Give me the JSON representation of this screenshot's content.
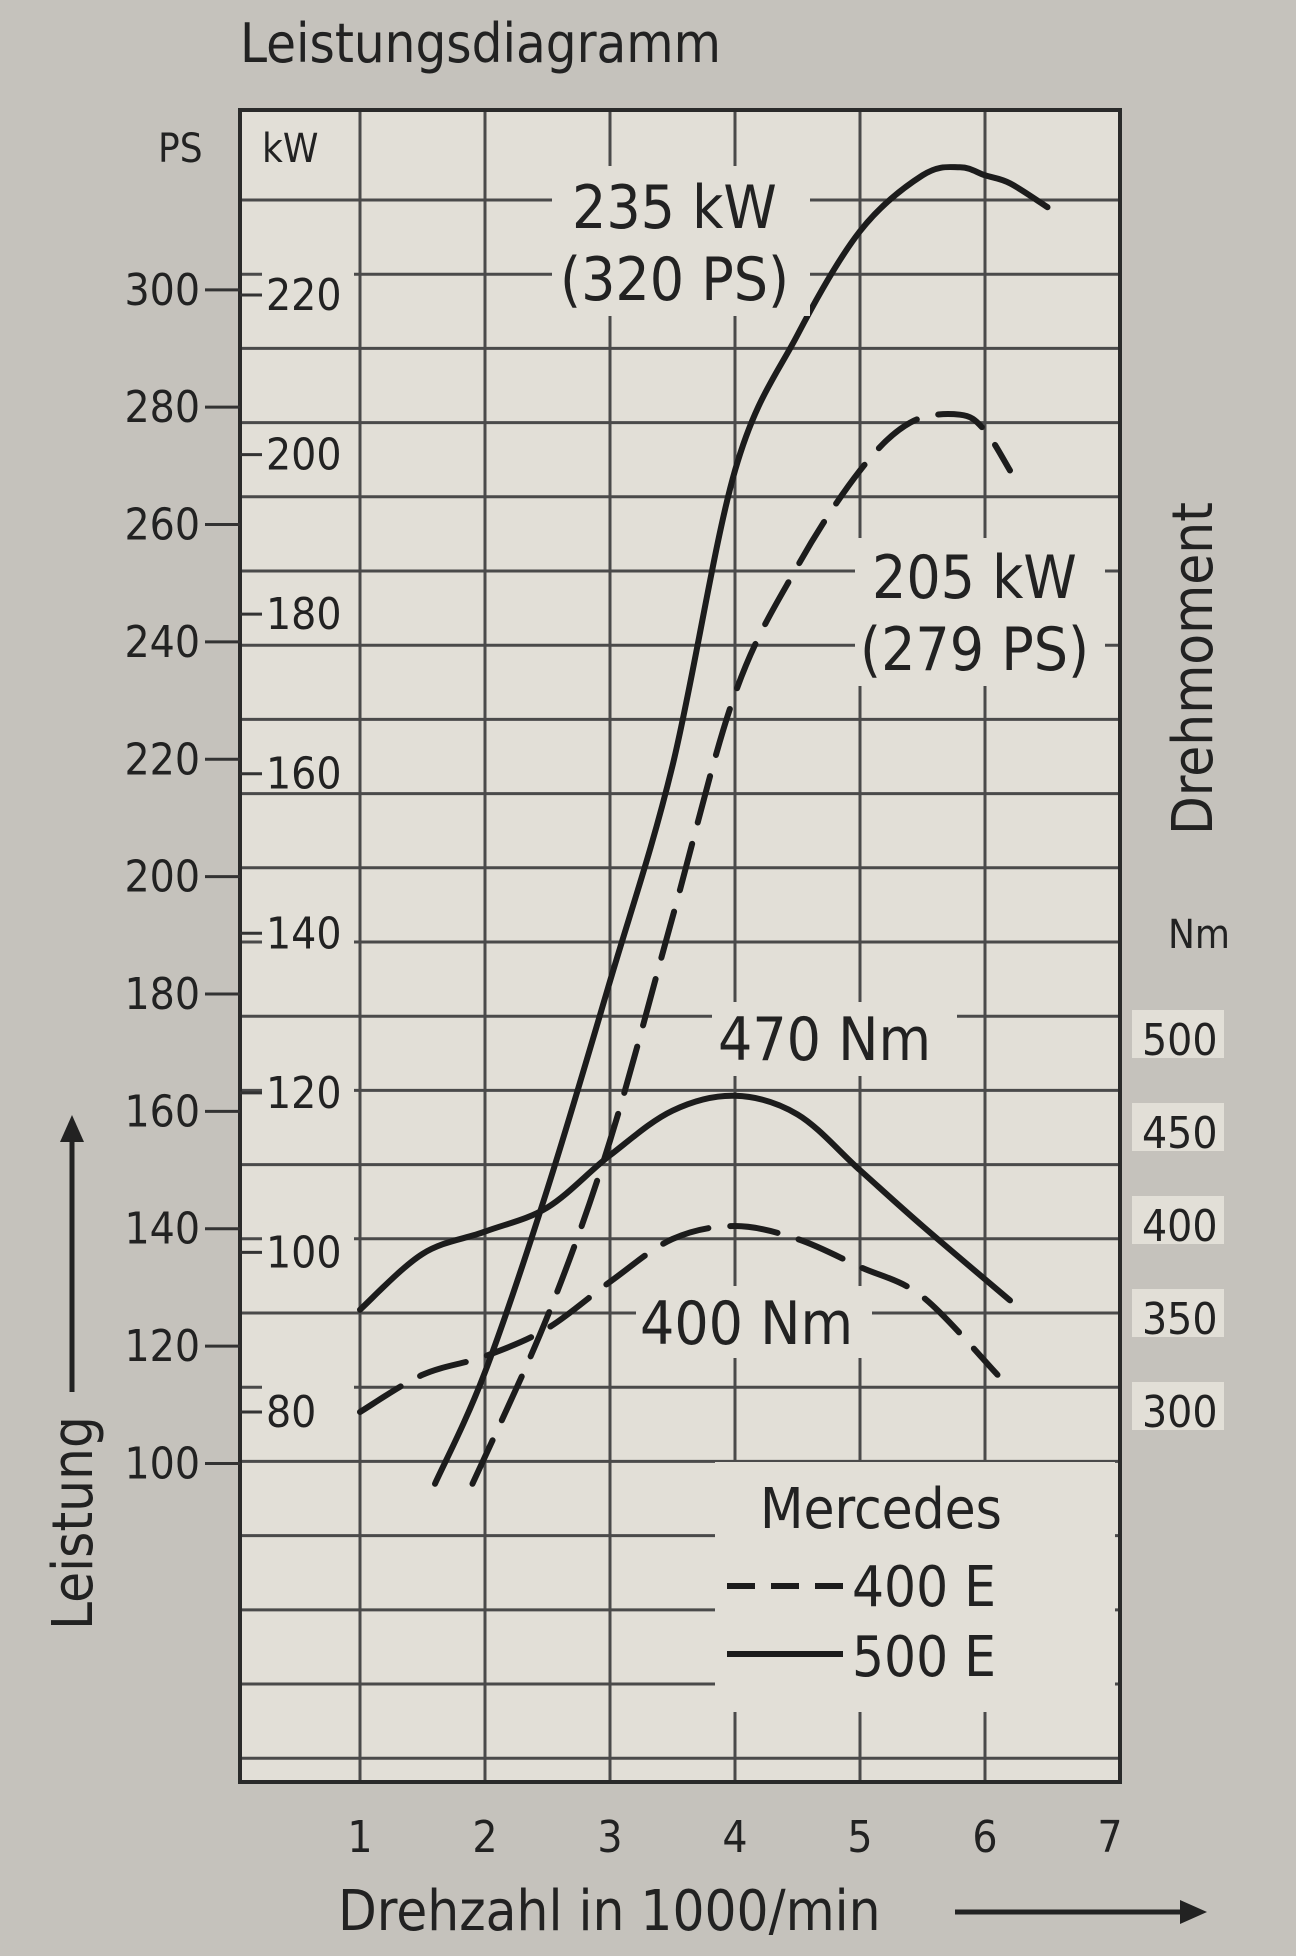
{
  "chart_data": {
    "type": "line",
    "title": "Leistungsdiagramm",
    "xlabel": "Drehzahl in 1000/min",
    "ylabel_left": "Leistung",
    "ylabel_right": "Drehmoment",
    "units": {
      "ps": "PS",
      "kw": "kW",
      "nm": "Nm"
    },
    "x_ticks": [
      "1",
      "2",
      "3",
      "4",
      "5",
      "6",
      "7"
    ],
    "ps_ticks": [
      "100",
      "120",
      "140",
      "160",
      "180",
      "200",
      "220",
      "240",
      "260",
      "280",
      "300"
    ],
    "kw_ticks": [
      "80",
      "100",
      "120",
      "140",
      "160",
      "180",
      "200",
      "220"
    ],
    "nm_ticks": [
      "300",
      "350",
      "400",
      "450",
      "500"
    ],
    "xlim": [
      1,
      7
    ],
    "kw_range": [
      80,
      220
    ],
    "nm_range": [
      300,
      500
    ],
    "grid": true,
    "legend": {
      "title": "Mercedes",
      "entries": [
        {
          "label": "400 E",
          "style": "dashed"
        },
        {
          "label": "500 E",
          "style": "solid"
        }
      ]
    },
    "annotations": {
      "power_500": [
        "235 kW",
        "(320 PS)"
      ],
      "power_400": [
        "205 kW",
        "(279 PS)"
      ],
      "torque_500": "470 Nm",
      "torque_400": "400 Nm"
    },
    "series": [
      {
        "name": "500 E",
        "quantity": "Leistung",
        "unit": "kW",
        "style": "solid",
        "x": [
          1.6,
          2.0,
          2.5,
          3.0,
          3.5,
          4.0,
          4.5,
          5.0,
          5.5,
          5.8,
          6.0,
          6.2,
          6.5
        ],
        "y": [
          71,
          85,
          108,
          134,
          161,
          198,
          215,
          228,
          235,
          236,
          235,
          234,
          231
        ]
      },
      {
        "name": "400 E",
        "quantity": "Leistung",
        "unit": "kW",
        "style": "dashed",
        "x": [
          1.9,
          2.5,
          3.0,
          3.5,
          4.0,
          4.5,
          5.0,
          5.4,
          5.8,
          6.0,
          6.2
        ],
        "y": [
          71,
          92,
          114,
          142,
          170,
          186,
          198,
          204,
          205,
          203,
          198
        ]
      },
      {
        "name": "500 E",
        "quantity": "Drehmoment",
        "unit": "Nm",
        "style": "solid",
        "x": [
          1.0,
          1.5,
          2.0,
          2.5,
          3.0,
          3.5,
          4.0,
          4.5,
          5.0,
          5.5,
          6.2
        ],
        "y": [
          355,
          385,
          397,
          410,
          438,
          462,
          470,
          460,
          430,
          400,
          360
        ]
      },
      {
        "name": "400 E",
        "quantity": "Drehmoment",
        "unit": "Nm",
        "style": "dashed",
        "x": [
          1.0,
          1.5,
          2.0,
          2.5,
          3.0,
          3.5,
          4.0,
          4.5,
          5.0,
          5.5,
          6.1
        ],
        "y": [
          300,
          320,
          330,
          345,
          370,
          393,
          400,
          393,
          378,
          362,
          320
        ]
      }
    ]
  }
}
